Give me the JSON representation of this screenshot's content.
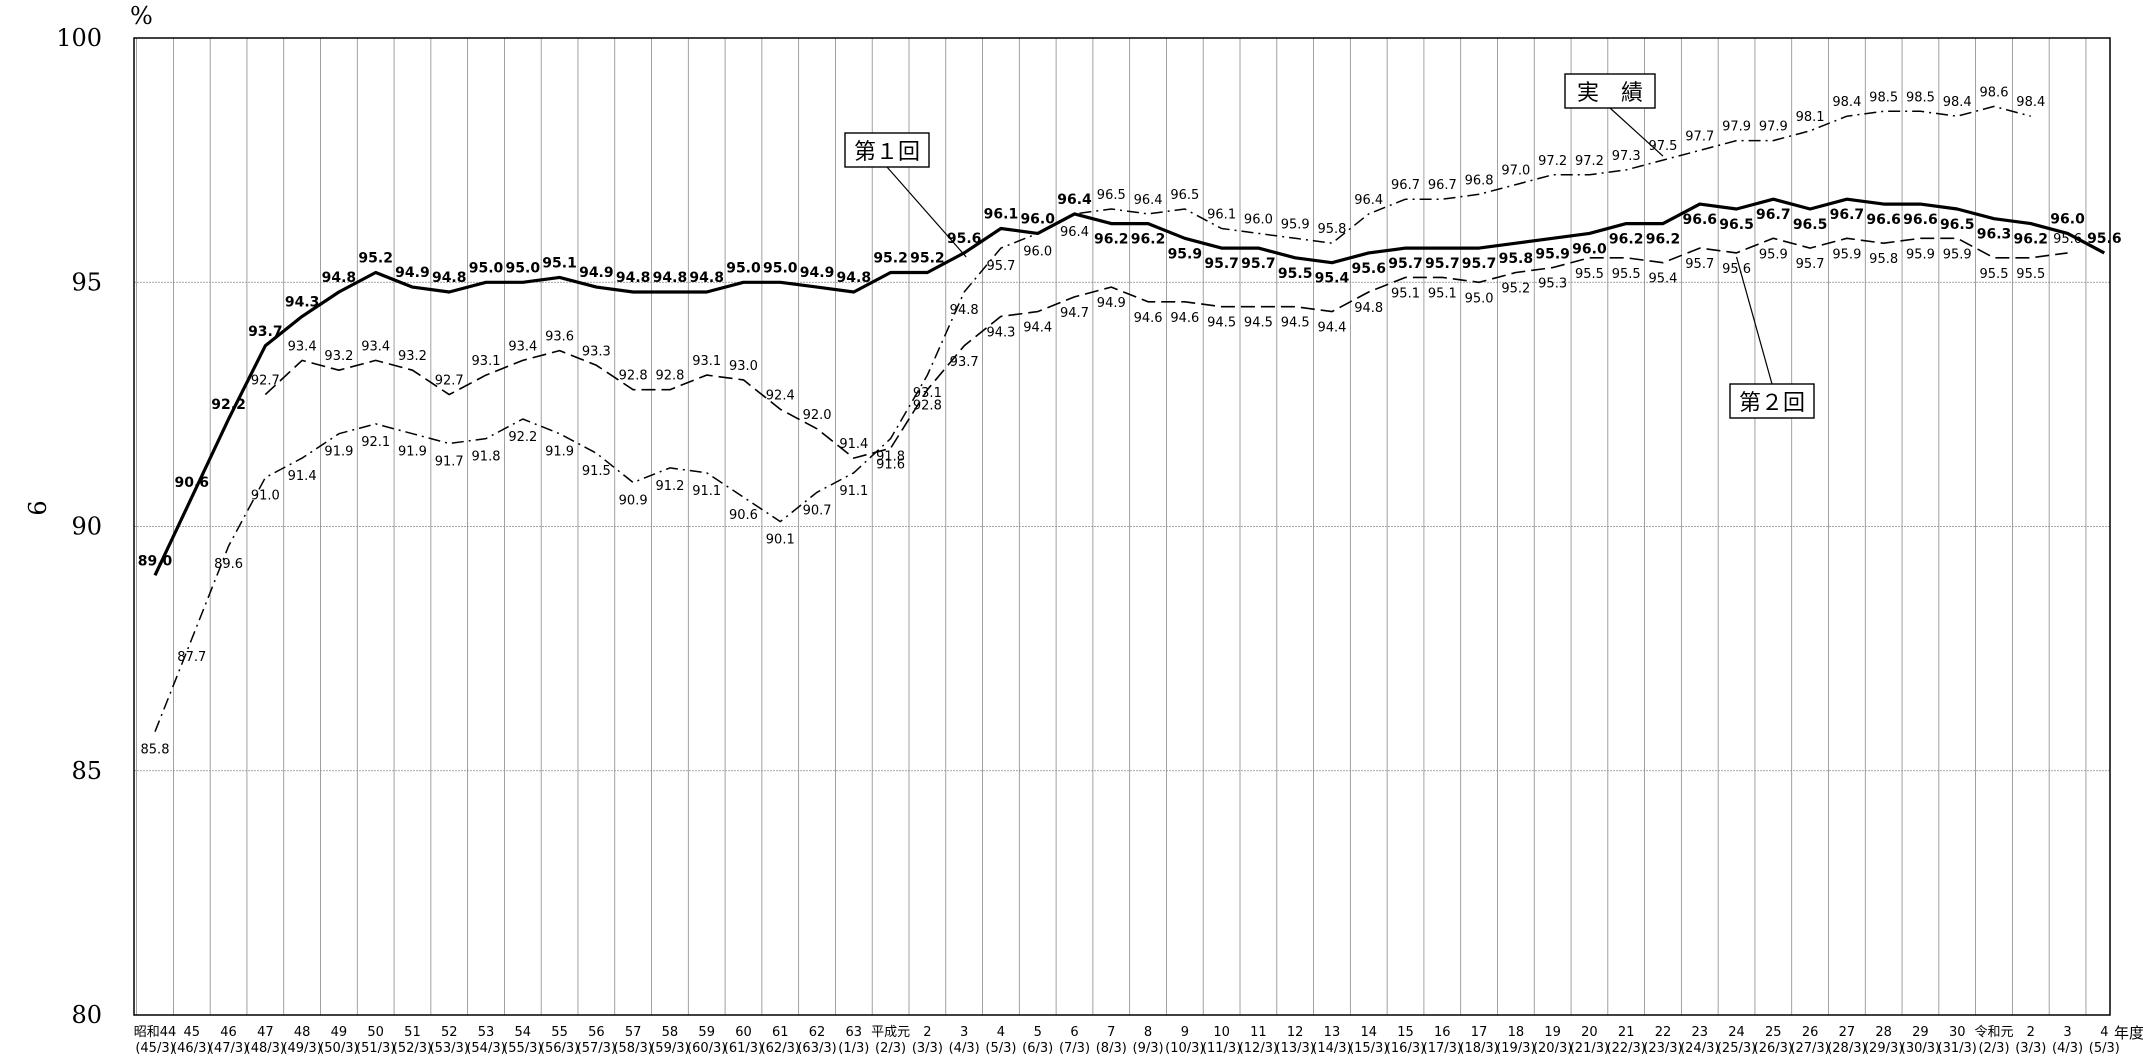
{
  "chart_data": {
    "type": "line",
    "ylabel": "%",
    "side_label": "9",
    "x_end_label": "年度",
    "ylim": [
      80,
      100
    ],
    "yticks": [
      80,
      85,
      90,
      95,
      100
    ],
    "grid": true,
    "x_labels": [
      [
        "昭和44",
        "(45/3)"
      ],
      [
        "45",
        "(46/3)"
      ],
      [
        "46",
        "(47/3)"
      ],
      [
        "47",
        "(48/3)"
      ],
      [
        "48",
        "(49/3)"
      ],
      [
        "49",
        "(50/3)"
      ],
      [
        "50",
        "(51/3)"
      ],
      [
        "51",
        "(52/3)"
      ],
      [
        "52",
        "(53/3)"
      ],
      [
        "53",
        "(54/3)"
      ],
      [
        "54",
        "(55/3)"
      ],
      [
        "55",
        "(56/3)"
      ],
      [
        "56",
        "(57/3)"
      ],
      [
        "57",
        "(58/3)"
      ],
      [
        "58",
        "(59/3)"
      ],
      [
        "59",
        "(60/3)"
      ],
      [
        "60",
        "(61/3)"
      ],
      [
        "61",
        "(62/3)"
      ],
      [
        "62",
        "(63/3)"
      ],
      [
        "63",
        "(1/3)"
      ],
      [
        "平成元",
        "(2/3)"
      ],
      [
        "2",
        "(3/3)"
      ],
      [
        "3",
        "(4/3)"
      ],
      [
        "4",
        "(5/3)"
      ],
      [
        "5",
        "(6/3)"
      ],
      [
        "6",
        "(7/3)"
      ],
      [
        "7",
        "(8/3)"
      ],
      [
        "8",
        "(9/3)"
      ],
      [
        "9",
        "(10/3)"
      ],
      [
        "10",
        "(11/3)"
      ],
      [
        "11",
        "(12/3)"
      ],
      [
        "12",
        "(13/3)"
      ],
      [
        "13",
        "(14/3)"
      ],
      [
        "14",
        "(15/3)"
      ],
      [
        "15",
        "(16/3)"
      ],
      [
        "16",
        "(17/3)"
      ],
      [
        "17",
        "(18/3)"
      ],
      [
        "18",
        "(19/3)"
      ],
      [
        "19",
        "(20/3)"
      ],
      [
        "20",
        "(21/3)"
      ],
      [
        "21",
        "(22/3)"
      ],
      [
        "22",
        "(23/3)"
      ],
      [
        "23",
        "(24/3)"
      ],
      [
        "24",
        "(25/3)"
      ],
      [
        "25",
        "(26/3)"
      ],
      [
        "26",
        "(27/3)"
      ],
      [
        "27",
        "(28/3)"
      ],
      [
        "28",
        "(29/3)"
      ],
      [
        "29",
        "(30/3)"
      ],
      [
        "30",
        "(31/3)"
      ],
      [
        "令和元",
        "(2/3)"
      ],
      [
        "2",
        "(3/3)"
      ],
      [
        "3",
        "(4/3)"
      ],
      [
        "4",
        "(5/3)"
      ]
    ],
    "series": [
      {
        "name": "第１回",
        "style": "solid-bold",
        "color": "#000000",
        "start_index": 0,
        "values": [
          89.0,
          90.6,
          92.2,
          93.7,
          94.3,
          94.8,
          95.2,
          94.9,
          94.8,
          95.0,
          95.0,
          95.1,
          94.9,
          94.8,
          94.8,
          94.8,
          95.0,
          95.0,
          94.9,
          94.8,
          95.2,
          95.2,
          95.6,
          96.1,
          96.0,
          96.4,
          96.2,
          96.2,
          95.9,
          95.7,
          95.7,
          95.5,
          95.4,
          95.6,
          95.7,
          95.7,
          95.7,
          95.8,
          95.9,
          96.0,
          96.2,
          96.2,
          96.6,
          96.5,
          96.7,
          96.5,
          96.7,
          96.6,
          96.6,
          96.5,
          96.3,
          96.2,
          96.0,
          95.6
        ]
      },
      {
        "name": "第２回",
        "style": "dashed",
        "color": "#000000",
        "start_index": 3,
        "values": [
          92.7,
          93.4,
          93.2,
          93.4,
          93.2,
          92.7,
          93.1,
          93.4,
          93.6,
          93.3,
          92.8,
          92.8,
          93.1,
          93.0,
          92.4,
          92.0,
          91.4,
          91.6,
          92.8,
          93.7,
          94.3,
          94.4,
          94.7,
          94.9,
          94.6,
          94.6,
          94.5,
          94.5,
          94.5,
          94.4,
          94.8,
          95.1,
          95.1,
          95.0,
          95.2,
          95.3,
          95.5,
          95.5,
          95.4,
          95.7,
          95.6,
          95.9,
          95.7,
          95.9,
          95.8,
          95.9,
          95.9,
          95.5,
          95.5,
          95.6
        ]
      },
      {
        "name": "実　績",
        "style": "dash-dot",
        "color": "#000000",
        "start_index": 0,
        "values": [
          85.8,
          87.7,
          89.6,
          91.0,
          91.4,
          91.9,
          92.1,
          91.9,
          91.7,
          91.8,
          92.2,
          91.9,
          91.5,
          90.9,
          91.2,
          91.1,
          90.6,
          90.1,
          90.7,
          91.1,
          91.8,
          93.1,
          94.8,
          95.7,
          96.0,
          96.4,
          96.5,
          96.4,
          96.5,
          96.1,
          96.0,
          95.9,
          95.8,
          96.4,
          96.7,
          96.7,
          96.8,
          97.0,
          97.2,
          97.2,
          97.3,
          97.5,
          97.7,
          97.9,
          97.9,
          98.1,
          98.4,
          98.5,
          98.5,
          98.4,
          98.6,
          98.4
        ]
      }
    ],
    "annotations": [
      {
        "text": "第１回",
        "series": 0
      },
      {
        "text": "第２回",
        "series": 1
      },
      {
        "text": "実　績",
        "series": 2
      }
    ]
  }
}
